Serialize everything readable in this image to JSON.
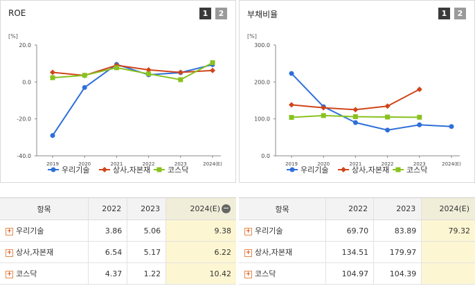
{
  "legend": [
    "우리기술",
    "상사,자본재",
    "코스닥"
  ],
  "colors": {
    "s0": "#2e6fd9",
    "s1": "#d0451b",
    "s2": "#88c21e"
  },
  "pager": [
    "1",
    "2"
  ],
  "roe": {
    "title": "ROE",
    "unit": "[%]",
    "table_head": [
      "항목",
      "2022",
      "2023",
      "2024(E)"
    ],
    "rows": [
      {
        "name": "우리기술",
        "v": [
          "3.86",
          "5.06",
          "9.38"
        ]
      },
      {
        "name": "상사,자본재",
        "v": [
          "6.54",
          "5.17",
          "6.22"
        ]
      },
      {
        "name": "코스닥",
        "v": [
          "4.37",
          "1.22",
          "10.42"
        ]
      }
    ]
  },
  "debt": {
    "title": "부채비율",
    "unit": "[%]",
    "table_head": [
      "항목",
      "2022",
      "2023",
      "2024(E)"
    ],
    "rows": [
      {
        "name": "우리기술",
        "v": [
          "69.70",
          "83.89",
          "79.32"
        ]
      },
      {
        "name": "상사,자본재",
        "v": [
          "134.51",
          "179.97",
          ""
        ]
      },
      {
        "name": "코스닥",
        "v": [
          "104.97",
          "104.39",
          ""
        ]
      }
    ]
  },
  "chart_data": [
    {
      "type": "line",
      "title": "ROE",
      "ylabel": "[%]",
      "categories": [
        "2019",
        "2020",
        "2021",
        "2022",
        "2023",
        "2024(E)"
      ],
      "ylim": [
        -40,
        20
      ],
      "yticks": [
        -40,
        -20,
        0,
        20
      ],
      "grid": false,
      "legend": "bottom",
      "series": [
        {
          "name": "우리기술",
          "values": [
            -29.0,
            -3.0,
            9.5,
            3.86,
            5.06,
            9.38
          ]
        },
        {
          "name": "상사,자본재",
          "values": [
            5.2,
            3.5,
            9.0,
            6.54,
            5.17,
            6.22
          ]
        },
        {
          "name": "코스닥",
          "values": [
            2.3,
            3.6,
            7.7,
            4.37,
            1.22,
            10.42
          ]
        }
      ]
    },
    {
      "type": "line",
      "title": "부채비율",
      "ylabel": "[%]",
      "categories": [
        "2019",
        "2020",
        "2021",
        "2022",
        "2023",
        "2024(E)"
      ],
      "ylim": [
        0,
        300
      ],
      "yticks": [
        0,
        100,
        200,
        300
      ],
      "grid": false,
      "legend": "bottom",
      "series": [
        {
          "name": "우리기술",
          "values": [
            223,
            133,
            90,
            69.7,
            83.89,
            79.32
          ]
        },
        {
          "name": "상사,자본재",
          "values": [
            138,
            130,
            125,
            134.51,
            179.97,
            null
          ]
        },
        {
          "name": "코스닥",
          "values": [
            104,
            109,
            106,
            104.97,
            104.39,
            null
          ]
        }
      ]
    }
  ]
}
